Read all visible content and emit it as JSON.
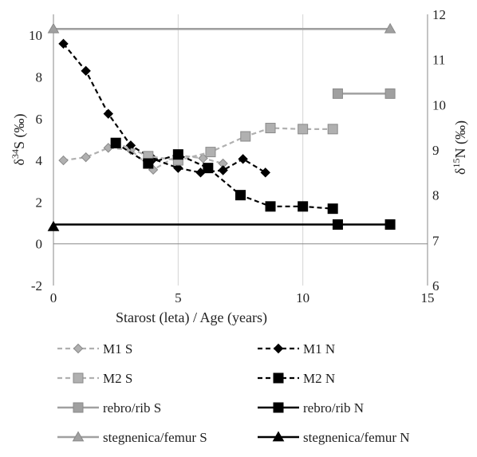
{
  "chart_data": {
    "type": "line",
    "xlabel": "Starost (leta) / Age (years)",
    "ylabel_left": {
      "base": "δ",
      "sup": "34",
      "rest": "S (‰)"
    },
    "ylabel_right": {
      "base": "δ",
      "sup": "15",
      "rest": "N (‰)"
    },
    "xlim": [
      0,
      15
    ],
    "ylim_left": [
      -2,
      11
    ],
    "ylim_right": [
      6,
      12
    ],
    "x_ticks": [
      "0",
      "5",
      "10",
      "15"
    ],
    "y_left_ticks": [
      "-2",
      "0",
      "2",
      "4",
      "6",
      "8",
      "10"
    ],
    "y_right_ticks": [
      "6",
      "7",
      "8",
      "9",
      "10",
      "11",
      "12"
    ],
    "grid": {
      "vertical": true,
      "horizontal": false
    },
    "legend_position": "bottom",
    "series": [
      {
        "name": "M1 S",
        "axis": "left",
        "marker": "diamond",
        "line": "dashed",
        "color": "#b0b0b0",
        "fill": "#b0b0b0",
        "x": [
          0.4,
          1.3,
          2.2,
          3.1,
          4.0,
          5.0,
          6.0,
          6.8
        ],
        "y": [
          4.0,
          4.15,
          4.6,
          4.5,
          3.55,
          4.25,
          4.1,
          3.85
        ]
      },
      {
        "name": "M1 N",
        "axis": "right",
        "marker": "diamond",
        "line": "dashed",
        "color": "#000000",
        "fill": "#000000",
        "x": [
          0.4,
          1.3,
          2.2,
          3.1,
          4.0,
          5.0,
          5.9,
          6.8,
          7.6,
          8.5
        ],
        "y": [
          11.35,
          10.75,
          9.8,
          9.1,
          8.8,
          8.6,
          8.5,
          8.55,
          8.8,
          8.5
        ]
      },
      {
        "name": "M2 S",
        "axis": "left",
        "marker": "square",
        "line": "dashed",
        "color": "#b0b0b0",
        "fill": "#b0b0b0",
        "x": [
          2.5,
          3.8,
          5.0,
          6.3,
          7.7,
          8.7,
          10.0,
          11.2
        ],
        "y": [
          4.85,
          4.2,
          4.0,
          4.4,
          5.15,
          5.55,
          5.5,
          5.5
        ]
      },
      {
        "name": "M2 N",
        "axis": "right",
        "marker": "square",
        "line": "dashed",
        "color": "#000000",
        "fill": "#000000",
        "x": [
          2.5,
          3.8,
          5.0,
          6.2,
          7.5,
          8.7,
          10.0,
          11.2
        ],
        "y": [
          9.15,
          8.7,
          8.9,
          8.6,
          8.0,
          7.75,
          7.75,
          7.7
        ]
      },
      {
        "name": "rebro/rib S",
        "axis": "left",
        "marker": "square",
        "line": "solid",
        "color": "#a0a0a0",
        "fill": "#a0a0a0",
        "x": [
          11.4,
          13.5
        ],
        "y": [
          7.2,
          7.2
        ]
      },
      {
        "name": "rebro/rib N",
        "axis": "right",
        "marker": "square",
        "line": "solid",
        "color": "#000000",
        "fill": "#000000",
        "x": [
          0,
          11.4,
          13.5
        ],
        "y": [
          7.35,
          7.35,
          7.35
        ],
        "marker_indices": [
          1,
          2
        ]
      },
      {
        "name": "stegnenica/femur S",
        "axis": "left",
        "marker": "triangle",
        "line": "solid",
        "color": "#a0a0a0",
        "fill": "#a0a0a0",
        "x": [
          0,
          13.5
        ],
        "y": [
          10.3,
          10.3
        ]
      },
      {
        "name": "stegnenica/femur N",
        "axis": "right",
        "marker": "triangle",
        "line": "solid",
        "color": "#000000",
        "fill": "#000000",
        "x": [
          0
        ],
        "y": [
          7.3
        ]
      }
    ]
  }
}
